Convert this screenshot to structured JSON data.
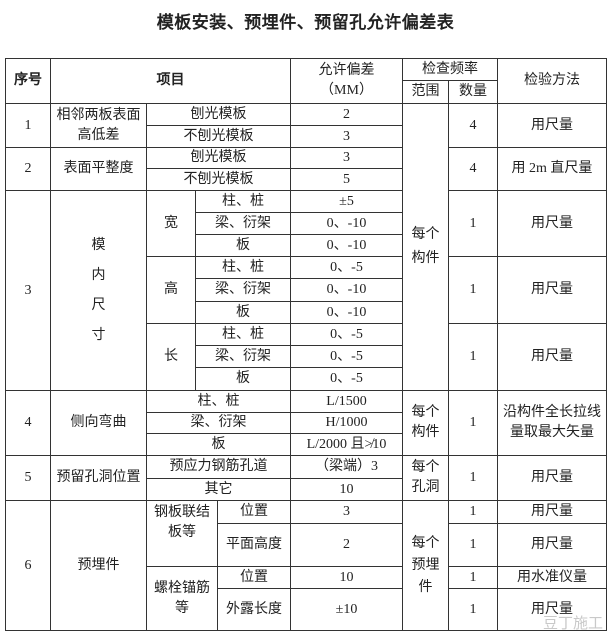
{
  "title": "模板安装、预埋件、预留孔允许偏差表",
  "header": {
    "no": "序号",
    "item": "项目",
    "tolerance": "允许偏差",
    "tolerance_unit": "（MM）",
    "frequency": "检查频率",
    "range": "范围",
    "quantity": "数量",
    "method": "检验方法"
  },
  "r1": {
    "no": "1",
    "item": "相邻两板表面高低差",
    "sub": [
      "刨光模板",
      "不刨光模板"
    ],
    "tol": [
      "2",
      "3"
    ],
    "qty": "4",
    "method": "用尺量"
  },
  "range_1_3": "每个构件",
  "r2": {
    "no": "2",
    "item": "表面平整度",
    "sub": [
      "刨光模板",
      "不刨光模板"
    ],
    "tol": [
      "3",
      "5"
    ],
    "qty": "4",
    "method": "用 2m 直尺量"
  },
  "r3": {
    "no": "3",
    "item": "模内尺寸",
    "groups": [
      {
        "name": "宽",
        "sub": [
          "柱、桩",
          "梁、衍架",
          "板"
        ],
        "tol": [
          "±5",
          "0、-10",
          "0、-10"
        ],
        "qty": "1",
        "method": "用尺量"
      },
      {
        "name": "高",
        "sub": [
          "柱、桩",
          "梁、衍架",
          "板"
        ],
        "tol": [
          "0、-5",
          "0、-10",
          "0、-10"
        ],
        "qty": "1",
        "method": "用尺量"
      },
      {
        "name": "长",
        "sub": [
          "柱、桩",
          "梁、衍架",
          "板"
        ],
        "tol": [
          "0、-5",
          "0、-5",
          "0、-5"
        ],
        "qty": "1",
        "method": "用尺量"
      }
    ]
  },
  "r4": {
    "no": "4",
    "item": "侧向弯曲",
    "sub": [
      "柱、桩",
      "梁、衍架",
      "板"
    ],
    "tol": [
      "L/1500",
      "H/1000",
      "L/2000 且≯10"
    ],
    "range": "每个构件",
    "qty": "1",
    "method": "沿构件全长拉线量取最大矢量"
  },
  "r5": {
    "no": "5",
    "item": "预留孔洞位置",
    "sub": [
      "预应力钢筋孔道",
      "其它"
    ],
    "tol": [
      "（梁端）3",
      "10"
    ],
    "range": "每个孔洞",
    "qty": "1",
    "method": "用尺量"
  },
  "r6": {
    "no": "6",
    "item": "预埋件",
    "range": "每个预埋件",
    "groups": [
      {
        "name": "钢板联结板等",
        "sub": [
          "位置",
          "平面高度"
        ],
        "tol": [
          "3",
          "2"
        ],
        "qty": [
          "1",
          "1"
        ],
        "method": [
          "用尺量",
          "用尺量"
        ]
      },
      {
        "name": "螺栓锚筋等",
        "sub": [
          "位置",
          "外露长度"
        ],
        "tol": [
          "10",
          "±10"
        ],
        "qty": [
          "1",
          "1"
        ],
        "method": [
          "用水准仪量",
          "用尺量"
        ]
      }
    ]
  },
  "watermark": "豆丁施工"
}
